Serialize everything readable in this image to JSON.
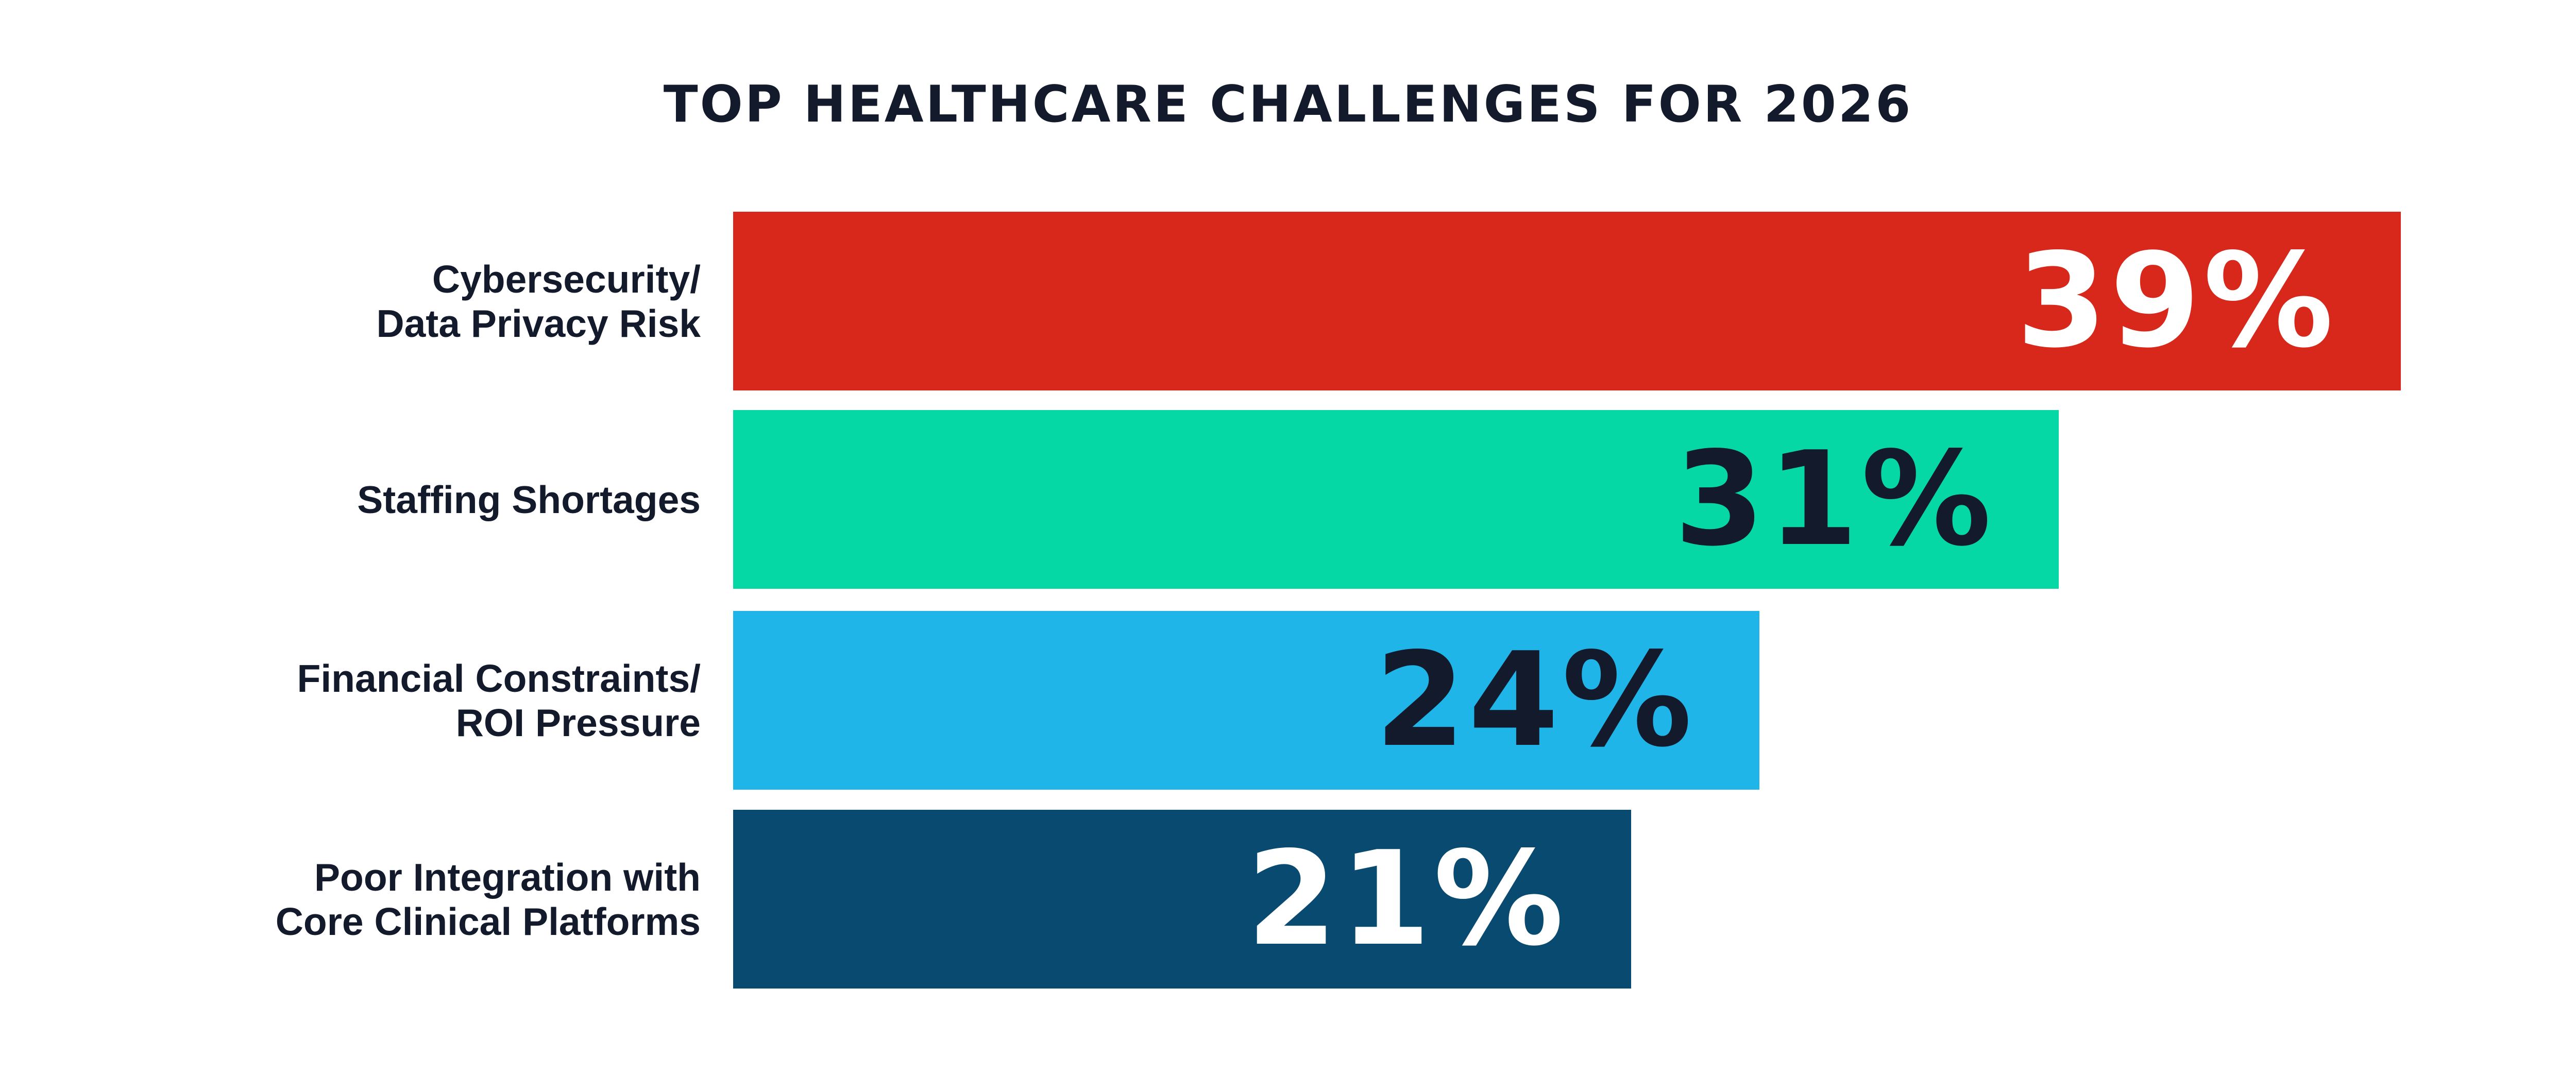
{
  "page": {
    "background_color": "#FFFFFF",
    "text_color": "#121A2B"
  },
  "chart_data": {
    "type": "bar",
    "orientation": "horizontal",
    "title": "TOP HEALTHCARE CHALLENGES FOR 2026",
    "unit": "%",
    "xlim": [
      0,
      43
    ],
    "grid": false,
    "legend": "none",
    "value_labels_position": "inside-right",
    "categories": [
      "Cybersecurity/ Data Privacy Risk",
      "Staffing Shortages",
      "Financial Constraints/ ROI Pressure",
      "Poor Integration with Core Clinical Platforms"
    ],
    "values": [
      39,
      31,
      24,
      21
    ],
    "bars": [
      {
        "label_lines": [
          "Cybersecurity/",
          "Data Privacy Risk"
        ],
        "value": 39,
        "value_label": "39%",
        "color": "#D8281B",
        "value_color": "#FFFFFF"
      },
      {
        "label_lines": [
          "Staffing Shortages"
        ],
        "value": 31,
        "value_label": "31%",
        "color": "#05D8A5",
        "value_color": "#121A2B"
      },
      {
        "label_lines": [
          "Financial Constraints/",
          "ROI Pressure"
        ],
        "value": 24,
        "value_label": "24%",
        "color": "#20B5E8",
        "value_color": "#121A2B"
      },
      {
        "label_lines": [
          "Poor Integration with",
          "Core Clinical Platforms"
        ],
        "value": 21,
        "value_label": "21%",
        "color": "#084A70",
        "value_color": "#FFFFFF"
      }
    ]
  }
}
